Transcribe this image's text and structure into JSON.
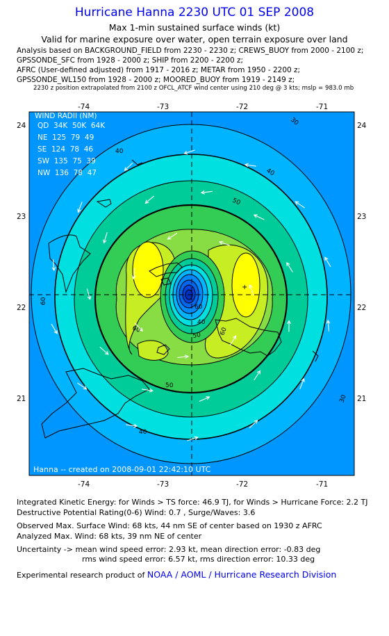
{
  "title": "Hurricane Hanna 2230 UTC 01 SEP 2008",
  "subtitle1": "Max 1-min sustained surface winds (kt)",
  "subtitle2": "Valid for marine exposure over water, open terrain exposure over land",
  "analysis_lines": [
    "Analysis based on  BACKGROUND_FIELD from 2230 - 2230 z;  CREWS_BUOY from 2000 - 2100 z;",
    "GPSSONDE_SFC from 1928 - 2000 z;  SHIP from 2200 - 2200 z;",
    "AFRC (User-defined adjusted) from 1917 - 2016 z;  METAR from 1950 - 2200 z;",
    "GPSSONDE_WL150 from 1928 - 2000 z;  MOORED_BUOY from 1919 - 2149 z;"
  ],
  "position_note": "2230 z position extrapolated from 2100 z OFCL_ATCF wind center using 210 deg @ 3 kts; mslp = 983.0 mb",
  "map": {
    "lon_ticks": [
      "-74",
      "-73",
      "-72",
      "-71"
    ],
    "lat_ticks": [
      "24",
      "23",
      "22",
      "21"
    ],
    "wind_radii": {
      "title": "WIND RADII (NM)",
      "header": "QD  34K  50K  64K",
      "rows": [
        "NE  125  79  49",
        "SE  124  78  46",
        "SW  135  75  39",
        "NW  136  78  47"
      ]
    },
    "contour_labels": {
      "c30a": "30",
      "c30b": "30",
      "c40a": "40",
      "c40b": "40",
      "c40c": "40",
      "c50a": "50",
      "c50b": "50",
      "c60a": "60",
      "c60b": "60",
      "c60c": "60",
      "c50c": "50",
      "c40d": "40"
    },
    "credit": "Hanna -- created on 2008-09-01 22:42:10 UTC",
    "colors": {
      "band30": "#00aaff",
      "band40": "#00e6e6",
      "band50": "#00c890",
      "band60": "#7fe050",
      "band70": "#b8f020",
      "band80": "#ffff00",
      "center_low": "#0033cc"
    }
  },
  "footer": {
    "ike": "Integrated Kinetic Energy:  for Winds > TS force: 46.9 TJ,  for Winds > Hurricane Force: 2.2 TJ",
    "dpr": "Destructive Potential Rating(0-6)   Wind: 0.7 , Surge/Waves: 3.6",
    "obs_max": "Observed Max. Surface Wind: 68 kts, 44 nm SE of center based on 1930 z AFRC",
    "anl_max": "Analyzed Max. Wind: 68 kts, 39 nm NE of center",
    "unc1": "Uncertainty -> mean wind speed error: 2.93 kt,   mean direction error:  -0.83 deg",
    "unc2": "rms wind speed error: 6.57 kt,   rms direction error: 10.33 deg",
    "product_prefix": "Experimental research product of",
    "product_link": "NOAA / AOML / Hurricane Research Division"
  }
}
